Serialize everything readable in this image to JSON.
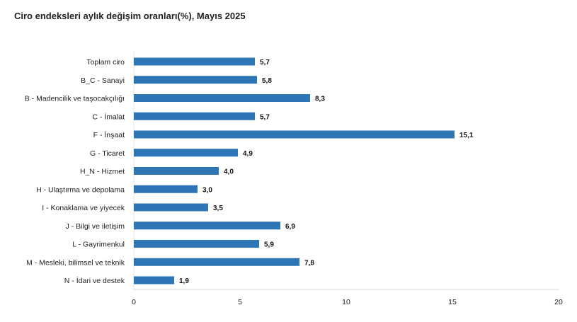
{
  "chart_data": {
    "type": "bar",
    "orientation": "horizontal",
    "title": "Ciro endeksleri aylık değişim oranları(%), Mayıs 2025",
    "xlabel": "",
    "ylabel": "",
    "categories": [
      "Toplam ciro",
      "B_C - Sanayi",
      "B - Madencilik ve taşocakçılığı",
      "C - İmalat",
      "F - İnşaat",
      "G - Ticaret",
      "H_N - Hizmet",
      "H - Ulaştırma ve depolama",
      "I - Konaklama ve yiyecek",
      "J - Bilgi ve iletişim",
      "L - Gayrimenkul",
      "M - Mesleki, bilimsel ve teknik",
      "N - İdari ve destek"
    ],
    "values": [
      5.7,
      5.8,
      8.3,
      5.7,
      15.1,
      4.9,
      4.0,
      3.0,
      3.5,
      6.9,
      5.9,
      7.8,
      1.9
    ],
    "value_labels": [
      "5,7",
      "5,8",
      "8,3",
      "5,7",
      "15,1",
      "4,9",
      "4,0",
      "3,0",
      "3,5",
      "6,9",
      "5,9",
      "7,8",
      "1,9"
    ],
    "xlim": [
      0,
      20
    ],
    "xticks": [
      0,
      5,
      10,
      15,
      20
    ],
    "grid": false,
    "legend": "none",
    "bar_color": "#2e75b6"
  }
}
